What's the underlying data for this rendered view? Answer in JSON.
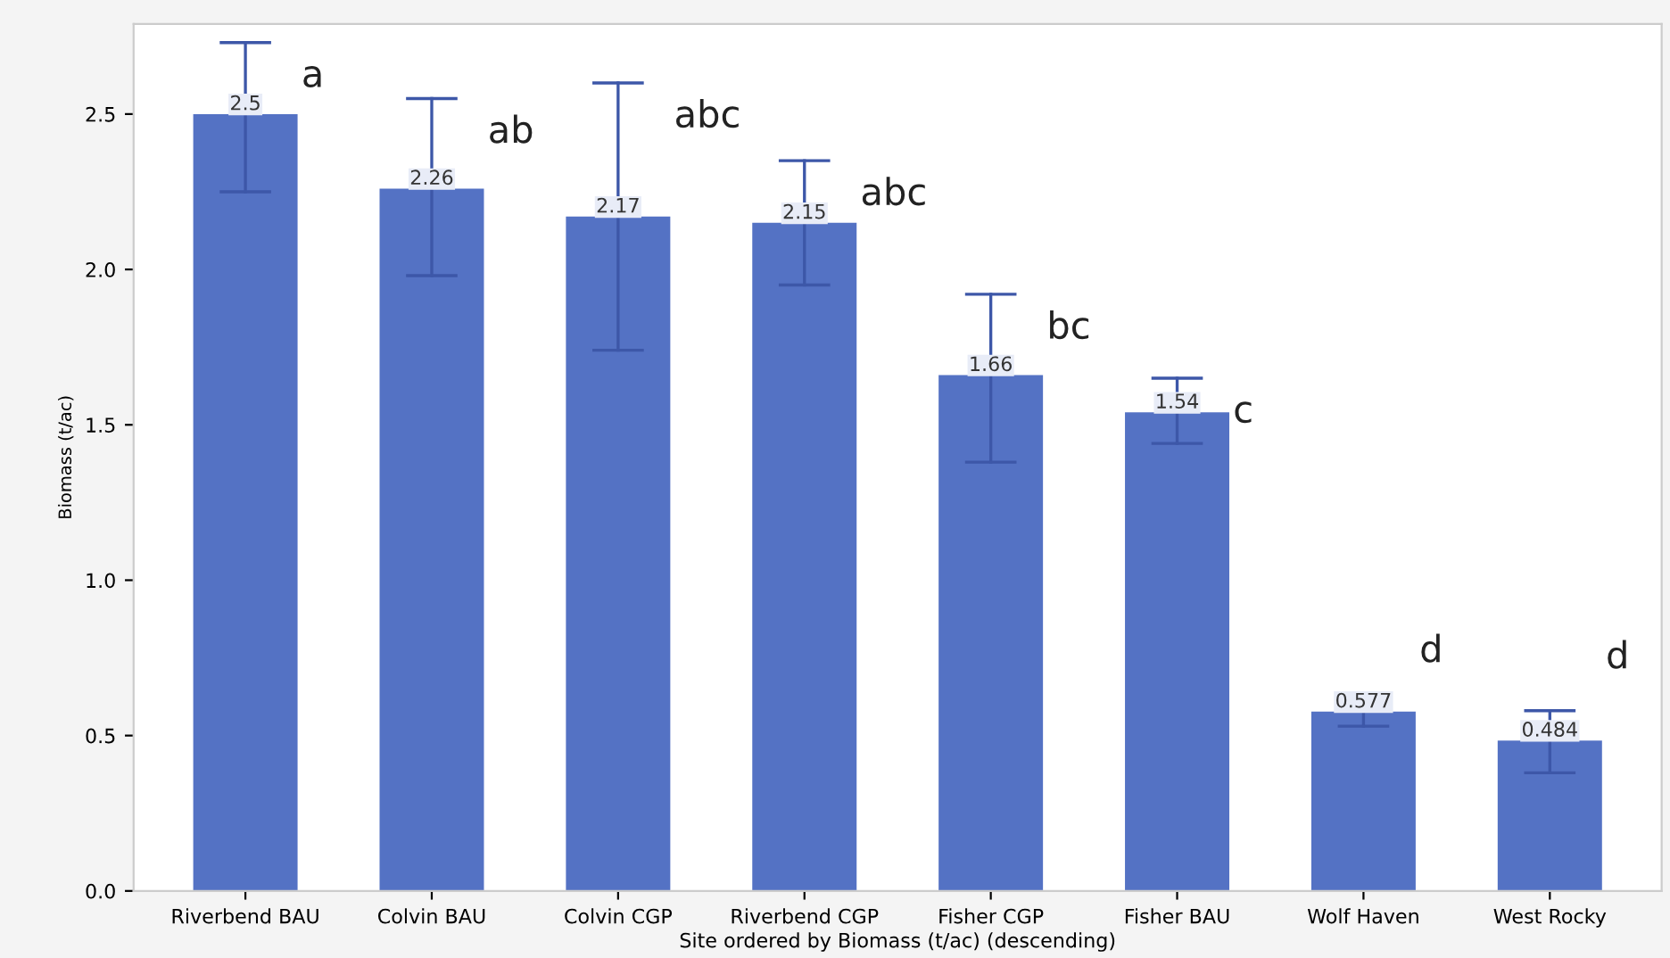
{
  "chart_data": {
    "type": "bar",
    "xlabel": "Site ordered by Biomass (t/ac) (descending)",
    "ylabel": "Biomass (t/ac)",
    "categories": [
      "Riverbend BAU",
      "Colvin BAU",
      "Colvin CGP",
      "Riverbend CGP",
      "Fisher CGP",
      "Fisher BAU",
      "Wolf Haven",
      "West Rocky"
    ],
    "series": [
      {
        "color": "#5472c4",
        "values": [
          2.5,
          2.26,
          2.17,
          2.15,
          1.66,
          1.54,
          0.577,
          0.484
        ],
        "errors": [
          [
            2.25,
            2.73
          ],
          [
            1.98,
            2.55
          ],
          [
            1.74,
            2.6
          ],
          [
            1.95,
            2.35
          ],
          [
            1.38,
            1.92
          ],
          [
            1.44,
            1.65
          ],
          [
            0.53,
            0.6
          ],
          [
            0.38,
            0.58
          ]
        ]
      }
    ],
    "data_labels": true,
    "ylim": [
      0,
      2.79
    ],
    "yticks": [
      {
        "value": 0,
        "label": "0.0"
      },
      {
        "value": 0.5,
        "label": "0.5"
      },
      {
        "value": 1,
        "label": "1.0"
      },
      {
        "value": 1.5,
        "label": "1.5"
      },
      {
        "value": 2,
        "label": "2.0"
      },
      {
        "value": 2.5,
        "label": "2.5"
      }
    ],
    "grid": false,
    "annotations": [
      "a",
      "ab",
      "abc",
      "abc",
      "bc",
      "c",
      "d",
      "d"
    ]
  }
}
